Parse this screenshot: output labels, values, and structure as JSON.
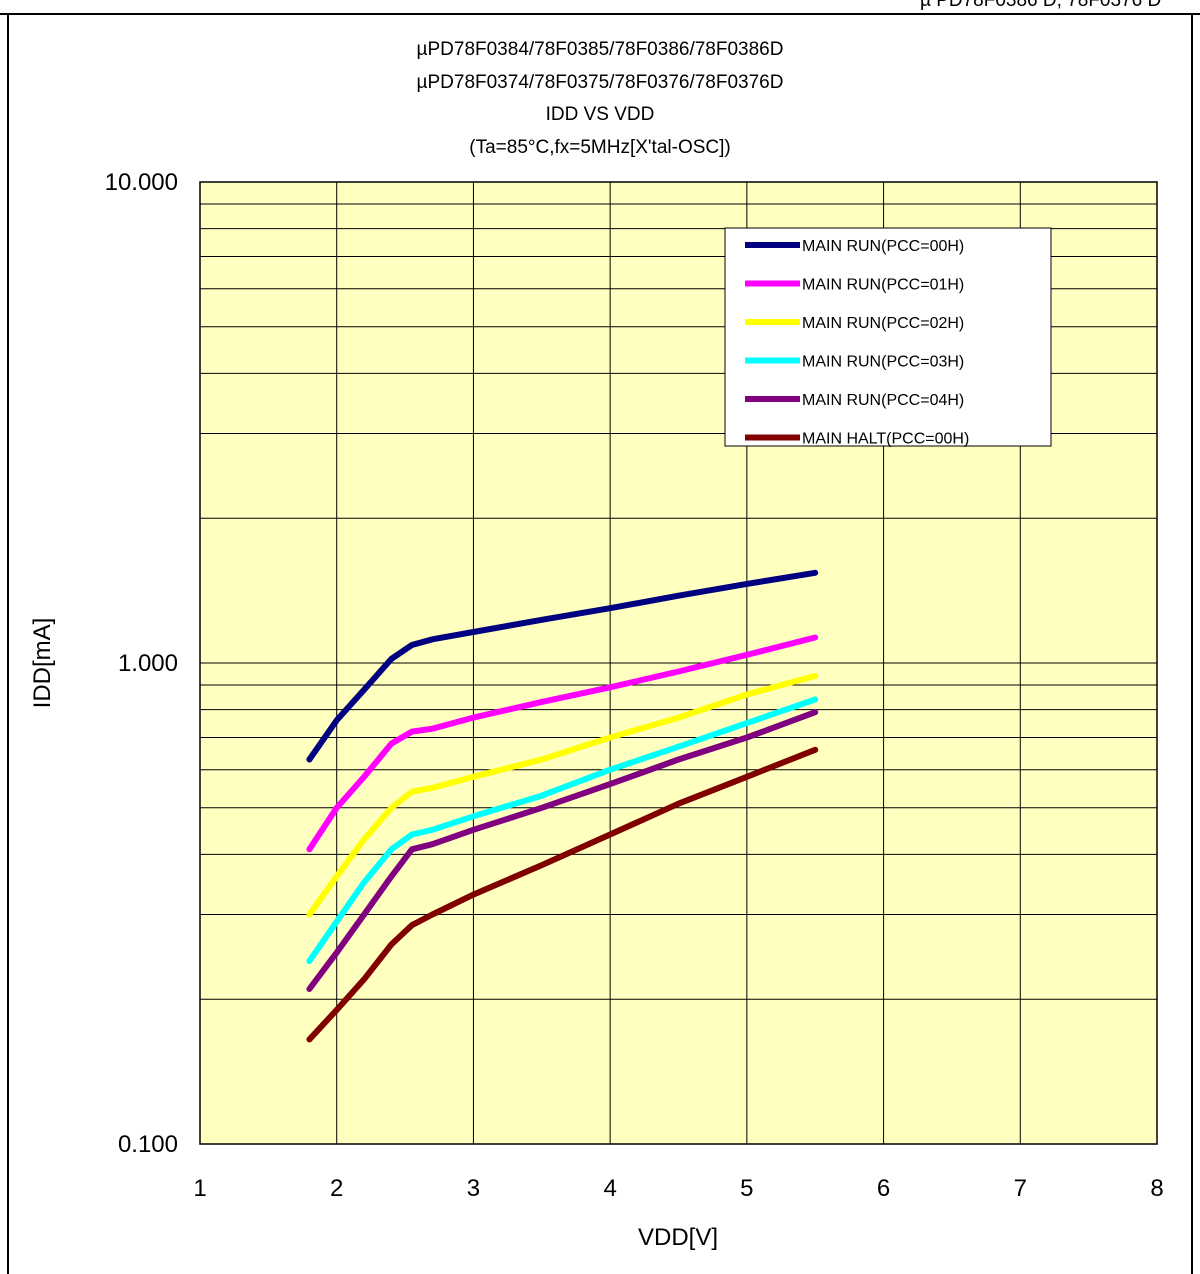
{
  "header_partial_text": "µ PD78F0386 D, 78F0376 D",
  "chart_data": {
    "type": "line",
    "title_lines": [
      "µPD78F0384/78F0385/78F0386/78F0386D",
      "µPD78F0374/78F0375/78F0376/78F0376D",
      "IDD VS VDD",
      "(Ta=85°C,fx=5MHz[X'tal-OSC])"
    ],
    "xlabel": "VDD[V]",
    "ylabel": "IDD[mA]",
    "xlim": [
      1,
      8
    ],
    "ylim": [
      0.1,
      10
    ],
    "y_scale": "log",
    "x_ticks": [
      "1",
      "2",
      "3",
      "4",
      "5",
      "6",
      "7",
      "8"
    ],
    "y_tick_labels": [
      {
        "value": 10,
        "label": "10.000"
      },
      {
        "value": 1,
        "label": "1.000"
      },
      {
        "value": 0.1,
        "label": "0.100"
      }
    ],
    "grid": true,
    "plot_background": "#ffffc0",
    "legend_position": "top-right",
    "series": [
      {
        "name": "MAIN RUN(PCC=00H)",
        "color": "#000080",
        "x": [
          1.8,
          2.0,
          2.2,
          2.4,
          2.55,
          2.7,
          3.0,
          3.5,
          4.0,
          4.5,
          5.0,
          5.5
        ],
        "y": [
          0.63,
          0.76,
          0.88,
          1.02,
          1.09,
          1.12,
          1.16,
          1.23,
          1.3,
          1.38,
          1.46,
          1.54
        ]
      },
      {
        "name": "MAIN RUN(PCC=01H)",
        "color": "#ff00ff",
        "x": [
          1.8,
          2.0,
          2.2,
          2.4,
          2.55,
          2.7,
          3.0,
          3.5,
          4.0,
          4.5,
          5.0,
          5.5
        ],
        "y": [
          0.41,
          0.5,
          0.58,
          0.68,
          0.72,
          0.73,
          0.77,
          0.83,
          0.89,
          0.96,
          1.04,
          1.13
        ]
      },
      {
        "name": "MAIN RUN(PCC=02H)",
        "color": "#ffff00",
        "x": [
          1.8,
          2.0,
          2.2,
          2.4,
          2.55,
          2.7,
          3.0,
          3.5,
          4.0,
          4.5,
          5.0,
          5.5
        ],
        "y": [
          0.3,
          0.36,
          0.43,
          0.5,
          0.54,
          0.55,
          0.58,
          0.63,
          0.7,
          0.77,
          0.86,
          0.94
        ]
      },
      {
        "name": "MAIN RUN(PCC=03H)",
        "color": "#00ffff",
        "x": [
          1.8,
          2.0,
          2.2,
          2.4,
          2.55,
          2.7,
          3.0,
          3.5,
          4.0,
          4.5,
          5.0,
          5.5
        ],
        "y": [
          0.24,
          0.29,
          0.35,
          0.41,
          0.44,
          0.45,
          0.48,
          0.53,
          0.6,
          0.67,
          0.75,
          0.84
        ]
      },
      {
        "name": "MAIN RUN(PCC=04H)",
        "color": "#800080",
        "x": [
          1.8,
          2.0,
          2.2,
          2.4,
          2.55,
          2.7,
          3.0,
          3.5,
          4.0,
          4.5,
          5.0,
          5.5
        ],
        "y": [
          0.21,
          0.25,
          0.3,
          0.36,
          0.41,
          0.42,
          0.45,
          0.5,
          0.56,
          0.63,
          0.7,
          0.79
        ]
      },
      {
        "name": "MAIN HALT(PCC=00H)",
        "color": "#800000",
        "x": [
          1.8,
          2.0,
          2.2,
          2.4,
          2.55,
          2.7,
          3.0,
          3.5,
          4.0,
          4.5,
          5.0,
          5.5
        ],
        "y": [
          0.165,
          0.19,
          0.22,
          0.26,
          0.285,
          0.3,
          0.33,
          0.38,
          0.44,
          0.51,
          0.58,
          0.66
        ]
      }
    ]
  }
}
